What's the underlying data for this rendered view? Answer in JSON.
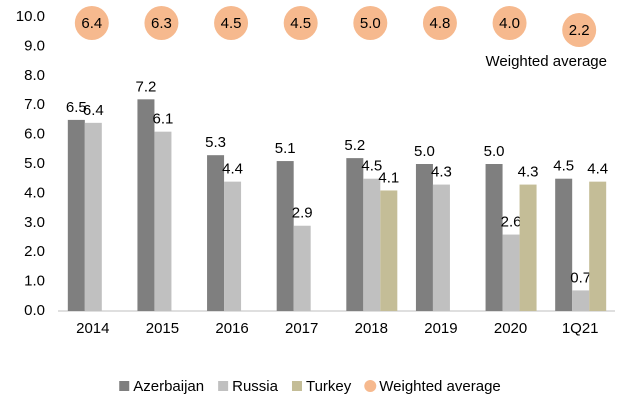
{
  "chart_data": {
    "type": "bar",
    "categories": [
      "2014",
      "2015",
      "2016",
      "2017",
      "2018",
      "2019",
      "2020",
      "1Q21"
    ],
    "series": [
      {
        "name": "Azerbaijan",
        "color": "#7f7f7f",
        "values": [
          6.5,
          7.2,
          5.3,
          5.1,
          5.2,
          5.0,
          5.0,
          4.5
        ],
        "value_labels": [
          "6.5",
          "7.2",
          "5.3",
          "5.1",
          "5.2",
          "5.0",
          "5.0",
          "4.5"
        ]
      },
      {
        "name": "Russia",
        "color": "#c0c0c0",
        "values": [
          6.4,
          6.1,
          4.4,
          2.9,
          4.5,
          4.3,
          2.6,
          0.7
        ],
        "value_labels": [
          "6.4",
          "6.1",
          "4.4",
          "2.9",
          "4.5",
          "4.3",
          "2.6",
          "0.7"
        ]
      },
      {
        "name": "Turkey",
        "color": "#c4bd97",
        "values": [
          null,
          null,
          null,
          null,
          4.1,
          null,
          4.3,
          4.4
        ],
        "value_labels": [
          null,
          null,
          null,
          null,
          "4.1",
          null,
          "4.3",
          "4.4"
        ]
      },
      {
        "name": "Weighted average",
        "color": "#f6b98e",
        "values": [
          6.4,
          6.3,
          4.5,
          4.5,
          5.0,
          4.8,
          4.0,
          2.2
        ],
        "value_labels": [
          "6.4",
          "6.3",
          "4.5",
          "4.5",
          "5.0",
          "4.8",
          "4.0",
          "2.2"
        ]
      }
    ],
    "annotation": "Weighted average",
    "ylim": [
      0,
      10
    ],
    "yticks": [
      {
        "value": 0,
        "label": "0.0"
      },
      {
        "value": 1,
        "label": "1.0"
      },
      {
        "value": 2,
        "label": "2.0"
      },
      {
        "value": 3,
        "label": "3.0"
      },
      {
        "value": 4,
        "label": "4.0"
      },
      {
        "value": 5,
        "label": "5.0"
      },
      {
        "value": 6,
        "label": "6.0"
      },
      {
        "value": 7,
        "label": "7.0"
      },
      {
        "value": 8,
        "label": "8.0"
      },
      {
        "value": 9,
        "label": "9.0"
      },
      {
        "value": 10,
        "label": "10.0"
      }
    ],
    "legend": "bottom"
  }
}
